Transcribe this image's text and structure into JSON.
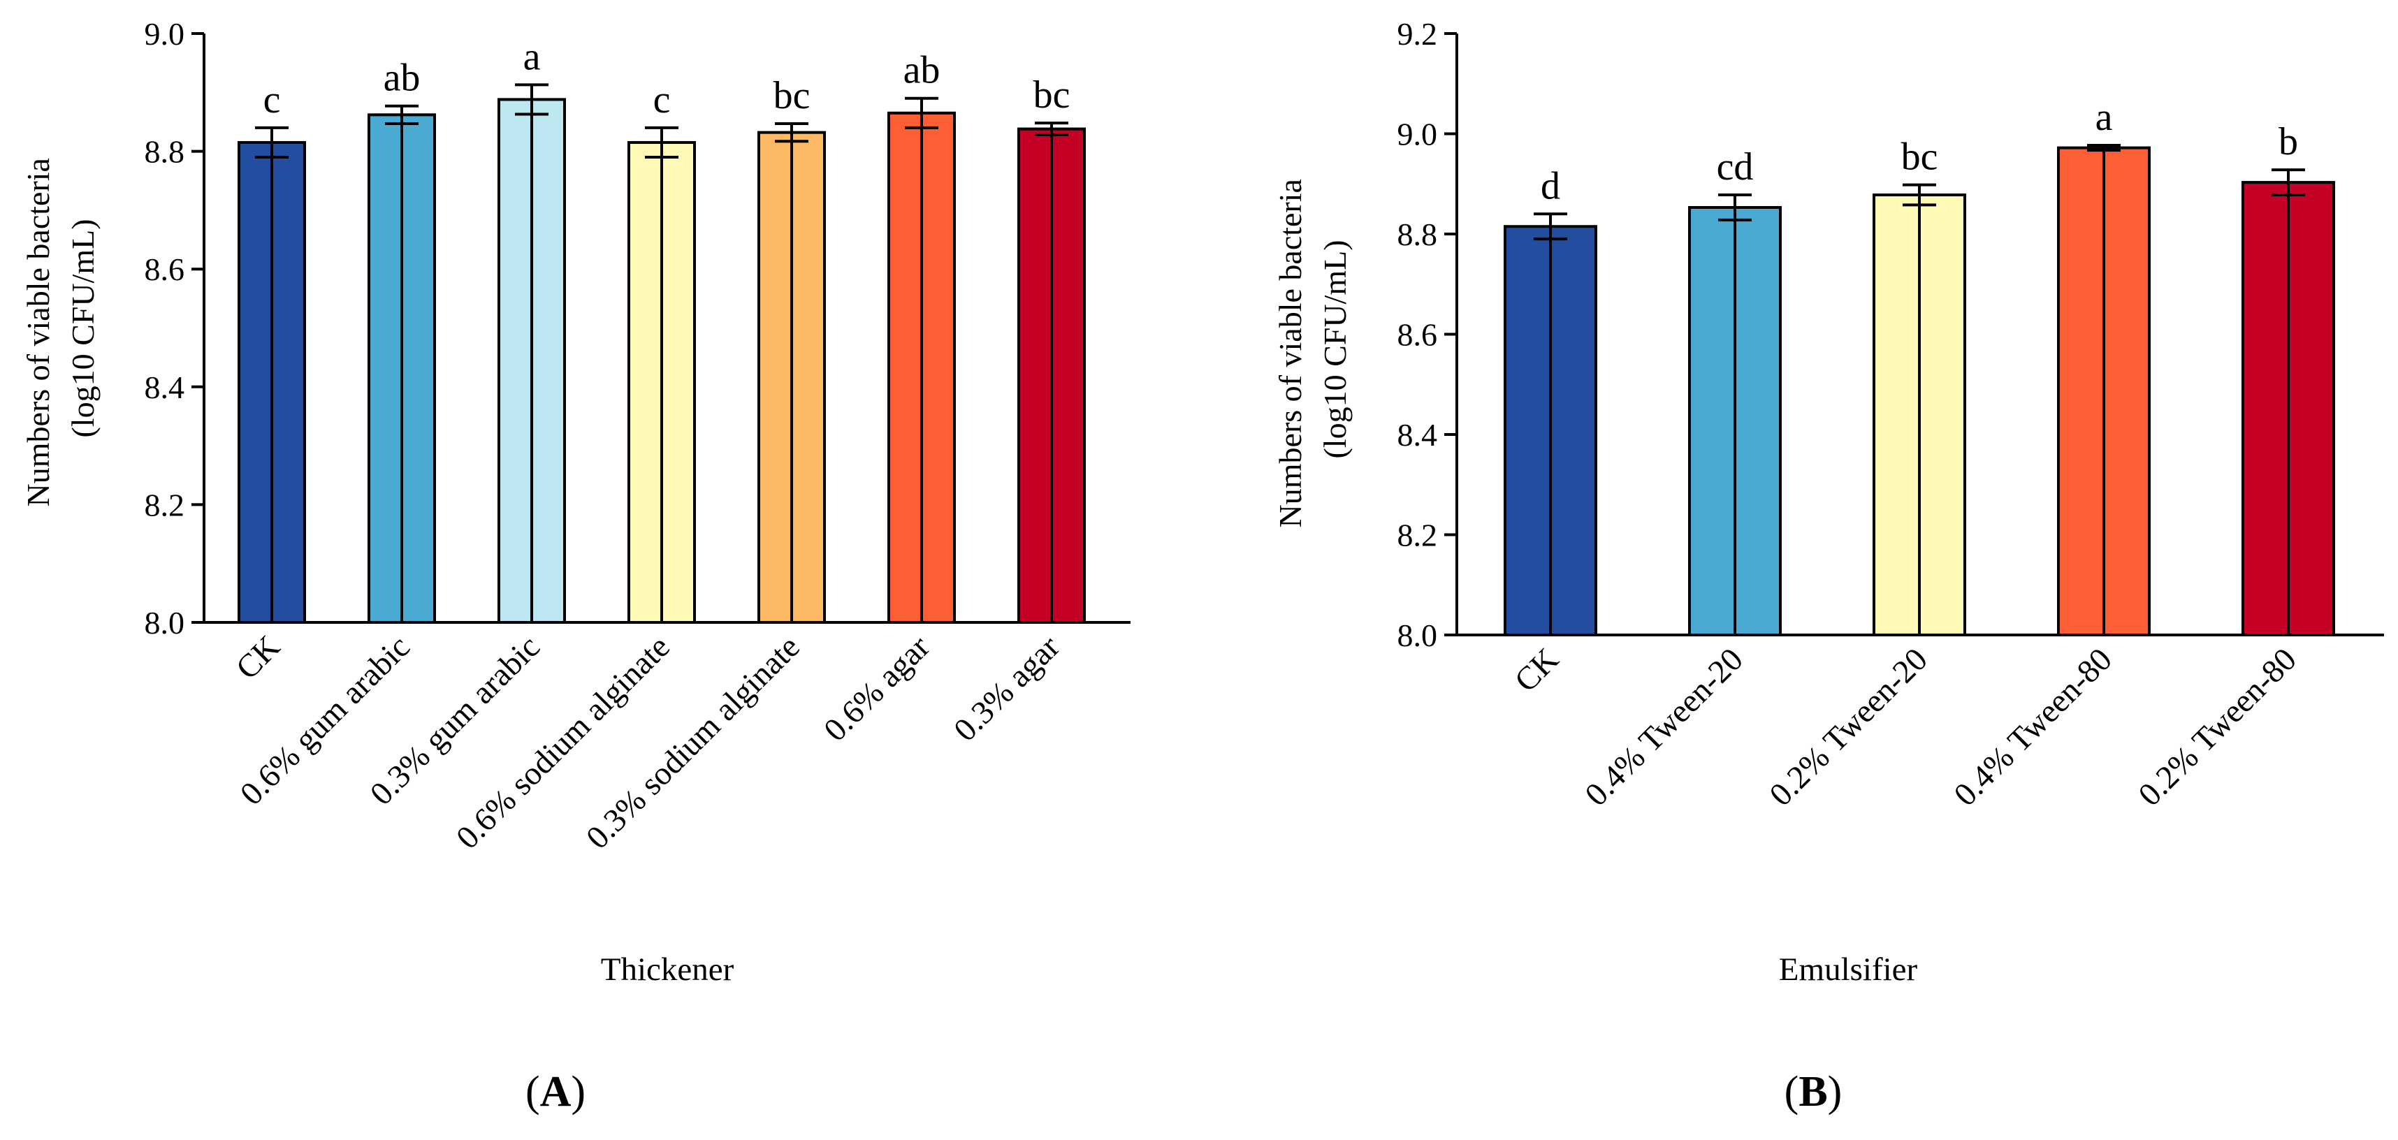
{
  "chart_data": [
    {
      "panel": "A",
      "type": "bar",
      "xlabel": "Thickener",
      "ylabel_lines": [
        "Numbers of viable bacteria",
        "(log10 CFU/mL)"
      ],
      "ylim": [
        8.0,
        9.0
      ],
      "yticks": [
        8.0,
        8.2,
        8.4,
        8.6,
        8.8,
        9.0
      ],
      "yticks_labels": [
        "8.0",
        "8.2",
        "8.4",
        "8.6",
        "8.8",
        "9.0"
      ],
      "categories": [
        "CK",
        "0.6% gum arabic",
        "0.3% gum arabic",
        "0.6% sodium alginate",
        "0.3% sodium alginate",
        "0.6% agar",
        "0.3% agar"
      ],
      "values": [
        8.815,
        8.862,
        8.888,
        8.815,
        8.832,
        8.865,
        8.838
      ],
      "errors": [
        0.025,
        0.015,
        0.025,
        0.025,
        0.015,
        0.025,
        0.01
      ],
      "significance": [
        "c",
        "ab",
        "a",
        "c",
        "bc",
        "ab",
        "bc"
      ],
      "colors": [
        "#234ea0",
        "#4aaad2",
        "#bde7f0",
        "#fff9b6",
        "#fdb863",
        "#fd5e36",
        "#c40027"
      ]
    },
    {
      "panel": "B",
      "type": "bar",
      "xlabel": "Emulsifier",
      "ylabel_lines": [
        "Numbers of viable bacteria",
        "(log10 CFU/mL)"
      ],
      "ylim": [
        8.0,
        9.2
      ],
      "yticks": [
        8.0,
        8.2,
        8.4,
        8.6,
        8.8,
        9.0,
        9.2
      ],
      "yticks_labels": [
        "8.0",
        "8.2",
        "8.4",
        "8.6",
        "8.8",
        "9.0",
        "9.2"
      ],
      "categories": [
        "CK",
        "0.4% Tween-20",
        "0.2% Tween-20",
        "0.4% Tween-80",
        "0.2% Tween-80"
      ],
      "values": [
        8.815,
        8.853,
        8.878,
        8.972,
        8.903
      ],
      "errors": [
        0.025,
        0.025,
        0.02,
        0.005,
        0.025
      ],
      "significance": [
        "d",
        "cd",
        "bc",
        "a",
        "b"
      ],
      "colors": [
        "#234ea0",
        "#4aaad2",
        "#fff9b6",
        "#fd5e36",
        "#c40027"
      ]
    }
  ],
  "panel_labels": {
    "A": {
      "open": "(",
      "letter": "A",
      "close": ")"
    },
    "B": {
      "open": "(",
      "letter": "B",
      "close": ")"
    }
  }
}
